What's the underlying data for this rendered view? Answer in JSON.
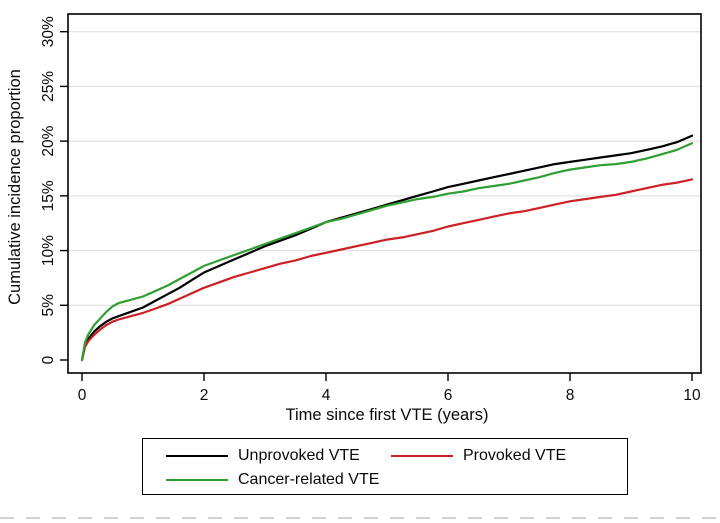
{
  "chart_data": {
    "type": "line",
    "title": "",
    "xlabel": "Time since first VTE (years)",
    "ylabel": "Cumulative incidence proportion",
    "xlim": [
      0,
      10
    ],
    "ylim": [
      0,
      30
    ],
    "grid": "horizontal",
    "legend_position": "bottom-outside",
    "x_tick_values": [
      0,
      2,
      4,
      6,
      8,
      10
    ],
    "x_tick_labels": [
      "0",
      "2",
      "4",
      "6",
      "8",
      "10"
    ],
    "y_tick_values": [
      0,
      5,
      10,
      15,
      20,
      25,
      30
    ],
    "y_tick_labels": [
      "0",
      "5%",
      "10%",
      "15%",
      "20%",
      "25%",
      "30%"
    ],
    "x": [
      0,
      0.05,
      0.1,
      0.2,
      0.3,
      0.4,
      0.5,
      0.6,
      0.8,
      1.0,
      1.2,
      1.4,
      1.6,
      1.8,
      2.0,
      2.25,
      2.5,
      2.75,
      3.0,
      3.25,
      3.5,
      3.75,
      4.0,
      4.25,
      4.5,
      4.75,
      5.0,
      5.25,
      5.5,
      5.75,
      6.0,
      6.25,
      6.5,
      6.75,
      7.0,
      7.25,
      7.5,
      7.75,
      8.0,
      8.25,
      8.5,
      8.75,
      9.0,
      9.25,
      9.5,
      9.75,
      10.0
    ],
    "series": [
      {
        "name": "Unprovoked VTE",
        "color": "#000000",
        "values": [
          0,
          1.3,
          1.9,
          2.6,
          3.1,
          3.5,
          3.8,
          4.0,
          4.4,
          4.8,
          5.4,
          6.0,
          6.6,
          7.3,
          8.0,
          8.6,
          9.2,
          9.8,
          10.4,
          10.9,
          11.4,
          12.0,
          12.6,
          13.0,
          13.4,
          13.8,
          14.2,
          14.6,
          15.0,
          15.4,
          15.8,
          16.1,
          16.4,
          16.7,
          17.0,
          17.3,
          17.6,
          17.9,
          18.1,
          18.3,
          18.5,
          18.7,
          18.9,
          19.2,
          19.5,
          19.9,
          20.5
        ]
      },
      {
        "name": "Provoked VTE",
        "color": "#cc2026",
        "values": [
          0,
          1.2,
          1.7,
          2.3,
          2.8,
          3.2,
          3.5,
          3.7,
          4.0,
          4.3,
          4.7,
          5.1,
          5.6,
          6.1,
          6.6,
          7.1,
          7.6,
          8.0,
          8.4,
          8.8,
          9.1,
          9.5,
          9.8,
          10.1,
          10.4,
          10.7,
          11.0,
          11.2,
          11.5,
          11.8,
          12.2,
          12.5,
          12.8,
          13.1,
          13.4,
          13.6,
          13.9,
          14.2,
          14.5,
          14.7,
          14.9,
          15.1,
          15.4,
          15.7,
          16.0,
          16.2,
          16.5
        ]
      },
      {
        "name": "Cancer-related VTE",
        "color": "#2f9e33",
        "values": [
          0,
          1.6,
          2.3,
          3.2,
          3.8,
          4.4,
          4.9,
          5.2,
          5.5,
          5.8,
          6.3,
          6.8,
          7.4,
          8.0,
          8.6,
          9.1,
          9.6,
          10.1,
          10.6,
          11.1,
          11.6,
          12.1,
          12.6,
          12.9,
          13.3,
          13.7,
          14.1,
          14.4,
          14.7,
          14.9,
          15.2,
          15.4,
          15.7,
          15.9,
          16.1,
          16.4,
          16.7,
          17.1,
          17.4,
          17.6,
          17.8,
          17.9,
          18.1,
          18.4,
          18.8,
          19.2,
          19.8
        ]
      }
    ],
    "colors": {
      "grid": "#dedede",
      "axis": "#000000",
      "text": "#0a0a0a"
    }
  }
}
